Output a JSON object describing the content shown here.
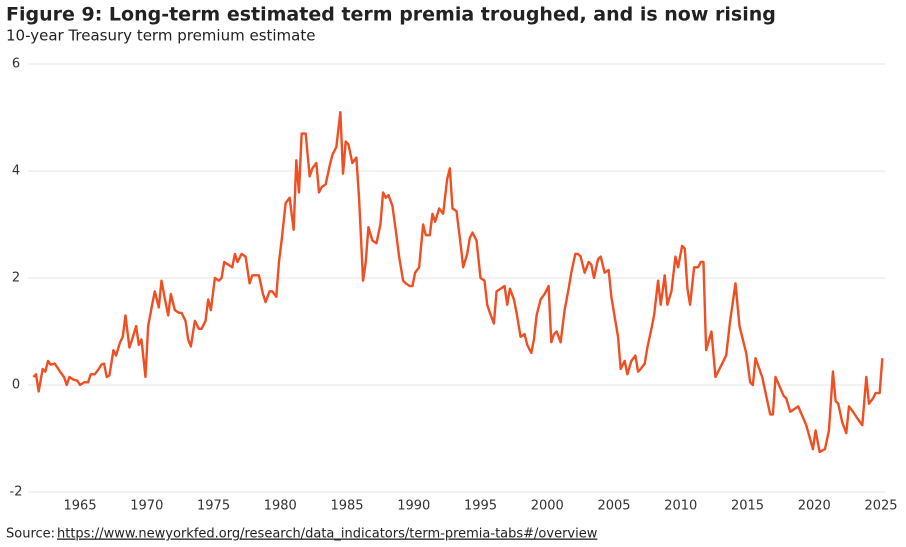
{
  "chart_data": {
    "type": "line",
    "title": "Figure 9: Long-term estimated term premia troughed, and is now rising",
    "subtitle": "10-year Treasury term premium estimate",
    "source_label": "Source:",
    "source_link": "https://www.newyorkfed.org/research/data_indicators/term-premia-tabs#/overview",
    "xlim": [
      1961.1,
      2025.3
    ],
    "xticks": [
      1965,
      1970,
      1975,
      1980,
      1985,
      1990,
      1995,
      2000,
      2005,
      2010,
      2015,
      2020,
      2025
    ],
    "ylim": [
      -2,
      6
    ],
    "yticks": [
      -2,
      0,
      2,
      4,
      6
    ],
    "grid": true,
    "x": [
      1961.5,
      1961.7,
      1961.9,
      1962.2,
      1962.4,
      1962.6,
      1962.8,
      1963.1,
      1963.5,
      1963.8,
      1964.0,
      1964.2,
      1964.5,
      1964.8,
      1965.0,
      1965.3,
      1965.6,
      1965.8,
      1966.1,
      1966.4,
      1966.6,
      1966.8,
      1967.0,
      1967.2,
      1967.5,
      1967.7,
      1968.0,
      1968.2,
      1968.4,
      1968.7,
      1968.9,
      1969.2,
      1969.4,
      1969.6,
      1969.9,
      1970.1,
      1970.4,
      1970.6,
      1970.9,
      1971.1,
      1971.4,
      1971.6,
      1971.8,
      1972.1,
      1972.4,
      1972.6,
      1972.9,
      1973.1,
      1973.3,
      1973.6,
      1973.9,
      1974.1,
      1974.4,
      1974.6,
      1974.8,
      1975.1,
      1975.4,
      1975.6,
      1975.8,
      1976.1,
      1976.4,
      1976.6,
      1976.8,
      1977.1,
      1977.4,
      1977.7,
      1977.9,
      1978.1,
      1978.4,
      1978.7,
      1978.9,
      1979.2,
      1979.4,
      1979.7,
      1979.9,
      1980.1,
      1980.4,
      1980.7,
      1981.0,
      1981.2,
      1981.4,
      1981.6,
      1981.9,
      1982.2,
      1982.4,
      1982.7,
      1982.9,
      1983.1,
      1983.4,
      1983.7,
      1983.9,
      1984.2,
      1984.5,
      1984.7,
      1984.9,
      1985.1,
      1985.4,
      1985.7,
      1985.9,
      1986.2,
      1986.4,
      1986.6,
      1986.9,
      1987.2,
      1987.5,
      1987.7,
      1987.9,
      1988.1,
      1988.4,
      1988.7,
      1988.9,
      1989.2,
      1989.4,
      1989.7,
      1989.9,
      1990.1,
      1990.4,
      1990.7,
      1990.9,
      1991.2,
      1991.4,
      1991.6,
      1991.9,
      1992.2,
      1992.5,
      1992.7,
      1992.9,
      1993.2,
      1993.5,
      1993.7,
      1994.0,
      1994.2,
      1994.4,
      1994.7,
      1995.0,
      1995.3,
      1995.5,
      1995.7,
      1996.0,
      1996.2,
      1996.5,
      1996.8,
      1997.0,
      1997.2,
      1997.5,
      1997.7,
      1998.0,
      1998.3,
      1998.5,
      1998.8,
      1999.0,
      1999.2,
      1999.5,
      1999.8,
      2000.1,
      2000.3,
      2000.5,
      2000.7,
      2001.0,
      2001.3,
      2001.6,
      2001.8,
      2002.1,
      2002.3,
      2002.5,
      2002.8,
      2003.1,
      2003.3,
      2003.5,
      2003.8,
      2004.0,
      2004.3,
      2004.6,
      2004.8,
      2005.0,
      2005.3,
      2005.5,
      2005.8,
      2006.0,
      2006.3,
      2006.6,
      2006.8,
      2007.0,
      2007.3,
      2007.5,
      2007.8,
      2008.0,
      2008.3,
      2008.5,
      2008.8,
      2009.0,
      2009.3,
      2009.6,
      2009.8,
      2010.1,
      2010.3,
      2010.5,
      2010.7,
      2011.0,
      2011.3,
      2011.5,
      2011.7,
      2011.9,
      2012.3,
      2012.6,
      2012.9,
      2013.4,
      2013.7,
      2014.1,
      2014.4,
      2014.9,
      2015.2,
      2015.4,
      2015.6,
      2016.1,
      2016.7,
      2016.9,
      2017.1,
      2017.7,
      2017.9,
      2018.2,
      2018.5,
      2018.8,
      2019.4,
      2019.9,
      2020.1,
      2020.4,
      2020.8,
      2021.1,
      2021.4,
      2021.6,
      2021.8,
      2022.1,
      2022.4,
      2022.6,
      2022.9,
      2023.3,
      2023.6,
      2023.9,
      2024.1,
      2024.4,
      2024.6,
      2024.9,
      2025.1
    ],
    "series": [
      {
        "name": "10-year term premium",
        "color": "#f04e23",
        "values": [
          0.15,
          0.2,
          -0.12,
          0.3,
          0.25,
          0.45,
          0.38,
          0.4,
          0.25,
          0.15,
          0.0,
          0.15,
          0.1,
          0.08,
          0.0,
          0.05,
          0.05,
          0.2,
          0.2,
          0.3,
          0.38,
          0.4,
          0.15,
          0.18,
          0.65,
          0.55,
          0.8,
          0.9,
          1.3,
          0.7,
          0.85,
          1.1,
          0.75,
          0.85,
          0.15,
          1.1,
          1.5,
          1.75,
          1.45,
          1.95,
          1.55,
          1.3,
          1.7,
          1.4,
          1.35,
          1.35,
          1.2,
          0.85,
          0.72,
          1.2,
          1.05,
          1.05,
          1.2,
          1.6,
          1.4,
          2.0,
          1.95,
          2.0,
          2.3,
          2.25,
          2.2,
          2.45,
          2.3,
          2.45,
          2.4,
          1.9,
          2.05,
          2.05,
          2.05,
          1.7,
          1.55,
          1.75,
          1.75,
          1.65,
          2.3,
          2.7,
          3.4,
          3.5,
          2.9,
          4.2,
          3.6,
          4.7,
          4.7,
          3.9,
          4.05,
          4.15,
          3.6,
          3.7,
          3.75,
          4.1,
          4.3,
          4.45,
          5.1,
          3.95,
          4.55,
          4.5,
          4.15,
          4.25,
          3.5,
          1.95,
          2.3,
          2.95,
          2.7,
          2.65,
          3.0,
          3.6,
          3.5,
          3.55,
          3.35,
          2.8,
          2.4,
          1.95,
          1.9,
          1.85,
          1.85,
          2.1,
          2.2,
          3.0,
          2.8,
          2.8,
          3.2,
          3.05,
          3.3,
          3.2,
          3.85,
          4.05,
          3.3,
          3.25,
          2.65,
          2.2,
          2.45,
          2.75,
          2.85,
          2.7,
          2.0,
          1.95,
          1.5,
          1.35,
          1.15,
          1.75,
          1.8,
          1.85,
          1.5,
          1.8,
          1.6,
          1.35,
          0.9,
          0.95,
          0.75,
          0.6,
          0.85,
          1.3,
          1.6,
          1.7,
          1.85,
          0.8,
          0.95,
          1.0,
          0.8,
          1.4,
          1.8,
          2.1,
          2.45,
          2.45,
          2.4,
          2.1,
          2.3,
          2.25,
          2.0,
          2.35,
          2.4,
          2.1,
          2.15,
          1.65,
          1.35,
          0.9,
          0.3,
          0.45,
          0.2,
          0.45,
          0.55,
          0.25,
          0.3,
          0.4,
          0.7,
          1.05,
          1.3,
          1.95,
          1.5,
          2.05,
          1.5,
          1.75,
          2.4,
          2.2,
          2.6,
          2.55,
          1.8,
          1.5,
          2.2,
          2.2,
          2.3,
          2.3,
          0.65,
          1.0,
          0.15,
          0.3,
          0.55,
          1.2,
          1.9,
          1.1,
          0.6,
          0.05,
          0.0,
          0.5,
          0.15,
          -0.55,
          -0.55,
          0.15,
          -0.2,
          -0.25,
          -0.5,
          -0.45,
          -0.4,
          -0.75,
          -1.2,
          -0.85,
          -1.25,
          -1.2,
          -0.85,
          0.25,
          -0.3,
          -0.35,
          -0.7,
          -0.9,
          -0.4,
          -0.5,
          -0.65,
          -0.75,
          0.15,
          -0.35,
          -0.25,
          -0.15,
          -0.15,
          0.5
        ]
      }
    ]
  }
}
